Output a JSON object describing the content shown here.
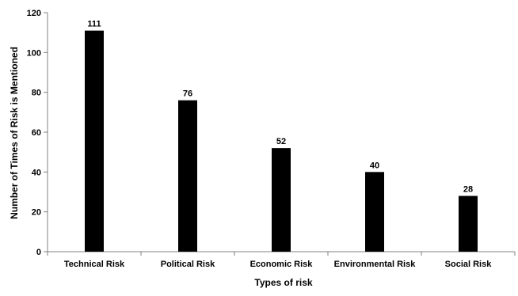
{
  "chart_data": {
    "type": "bar",
    "categories": [
      "Technical Risk",
      "Political Risk",
      "Economic Risk",
      "Environmental Risk",
      "Social Risk"
    ],
    "values": [
      111,
      76,
      52,
      40,
      28
    ],
    "data_labels": [
      "111",
      "76",
      "52",
      "40",
      "28"
    ],
    "title": "",
    "xlabel": "Types of risk",
    "ylabel": "Number of Times of Risk is Mentioned",
    "ylim": [
      0,
      120
    ],
    "yticks": [
      0,
      20,
      40,
      60,
      80,
      100,
      120
    ],
    "grid": false,
    "legend": "none",
    "bar_color": "#000000",
    "axis_color": "#808080"
  }
}
